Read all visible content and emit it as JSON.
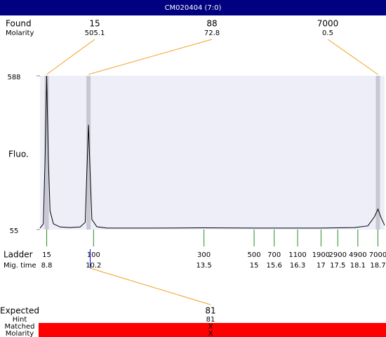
{
  "chart_data": {
    "type": "electropherogram",
    "title": "CM020404 (7:0)",
    "y_label": "Fluo.",
    "ylim": [
      55,
      588
    ],
    "yticks": [
      55,
      588
    ],
    "xlim": [
      8.6,
      18.9
    ],
    "found": {
      "label": "Found",
      "sub_label": "Molarity",
      "peaks": [
        {
          "size": 15,
          "molarity": 505.1,
          "time": 8.8
        },
        {
          "size": 88,
          "molarity": 72.8,
          "time": 10.05
        },
        {
          "size": 7000,
          "molarity": 0.5,
          "time": 18.7
        }
      ]
    },
    "ladder": {
      "label": "Ladder",
      "sub_label": "Mig. time",
      "sizes": [
        15,
        100,
        300,
        500,
        700,
        1100,
        1900,
        2900,
        4900,
        7000
      ],
      "times": [
        8.8,
        10.2,
        13.5,
        15,
        15.6,
        16.3,
        17,
        17.5,
        18.1,
        18.7
      ]
    },
    "expected": {
      "label": "Expected",
      "hint_label": "Hint",
      "matched_label": "Matched",
      "molarity_label": "Molarity",
      "value": 81,
      "hint": 81,
      "matched": "X",
      "molarity": "X",
      "time": 10.1
    },
    "trace": {
      "x": [
        8.6,
        8.7,
        8.75,
        8.8,
        8.85,
        8.9,
        9.0,
        9.2,
        9.5,
        9.8,
        9.95,
        10.0,
        10.05,
        10.1,
        10.15,
        10.3,
        10.6,
        12.0,
        13.5,
        15.0,
        17.0,
        18.0,
        18.4,
        18.6,
        18.7,
        18.8,
        18.9
      ],
      "values": [
        60,
        75,
        300,
        588,
        300,
        120,
        75,
        64,
        62,
        64,
        80,
        250,
        418,
        250,
        90,
        65,
        60,
        60,
        61,
        60,
        60,
        62,
        68,
        100,
        126,
        95,
        70
      ]
    }
  }
}
